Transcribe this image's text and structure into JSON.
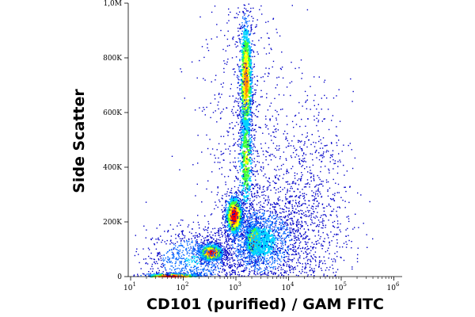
{
  "chart_data": {
    "type": "scatter",
    "style": "density-colored flow cytometry dot plot",
    "xlabel": "CD101 (purified) / GAM FITC",
    "ylabel": "Side Scatter",
    "x_scale": "log",
    "xlim": [
      0,
      1000000
    ],
    "x_ticks": [
      {
        "value": 10,
        "base": "10",
        "exp": "1"
      },
      {
        "value": 100,
        "base": "10",
        "exp": "2"
      },
      {
        "value": 1000,
        "base": "10",
        "exp": "3"
      },
      {
        "value": 10000,
        "base": "10",
        "exp": "4"
      },
      {
        "value": 100000,
        "base": "10",
        "exp": "5"
      },
      {
        "value": 1000000,
        "base": "10",
        "exp": "6"
      }
    ],
    "y_scale": "linear",
    "ylim": [
      0,
      1000000
    ],
    "y_ticks": [
      {
        "value": 0,
        "label": "0"
      },
      {
        "value": 200000,
        "label": "200K"
      },
      {
        "value": 400000,
        "label": "400K"
      },
      {
        "value": 600000,
        "label": "600K"
      },
      {
        "value": 800000,
        "label": "800K"
      },
      {
        "value": 1000000,
        "label": "1,0M"
      }
    ],
    "grid": false,
    "legend": "none",
    "colormap": [
      "#0000c8",
      "#0064ff",
      "#00d2ff",
      "#3cff3c",
      "#ffff00",
      "#ff8c00",
      "#ff0000"
    ],
    "populations": [
      {
        "cx": 1500,
        "cy": 720000,
        "sx_log": 0.07,
        "sy": 130000,
        "weight": 900,
        "peak": 0.8
      },
      {
        "cx": 1500,
        "cy": 430000,
        "sx_log": 0.08,
        "sy": 130000,
        "weight": 500,
        "peak": 0.6
      },
      {
        "cx": 900,
        "cy": 225000,
        "sx_log": 0.09,
        "sy": 40000,
        "weight": 900,
        "peak": 1.0
      },
      {
        "cx": 330,
        "cy": 90000,
        "sx_log": 0.13,
        "sy": 18000,
        "weight": 800,
        "peak": 0.95
      },
      {
        "cx": 2100,
        "cy": 135000,
        "sx_log": 0.09,
        "sy": 35000,
        "weight": 600,
        "peak": 0.85
      },
      {
        "cx": 60,
        "cy": 3000,
        "sx_log": 0.3,
        "sy": 6000,
        "weight": 600,
        "peak": 1.0
      },
      {
        "cx": 3000,
        "cy": 130000,
        "sx_log": 0.4,
        "sy": 80000,
        "weight": 1500,
        "peak": 0.35
      },
      {
        "cx": 20000,
        "cy": 200000,
        "sx_log": 0.45,
        "sy": 220000,
        "weight": 1200,
        "peak": 0.12
      },
      {
        "cx": 150,
        "cy": 60000,
        "sx_log": 0.45,
        "sy": 60000,
        "weight": 900,
        "peak": 0.3
      },
      {
        "cx": 1500,
        "cy": 500000,
        "sx_log": 0.5,
        "sy": 350000,
        "weight": 700,
        "peak": 0.1
      }
    ]
  }
}
